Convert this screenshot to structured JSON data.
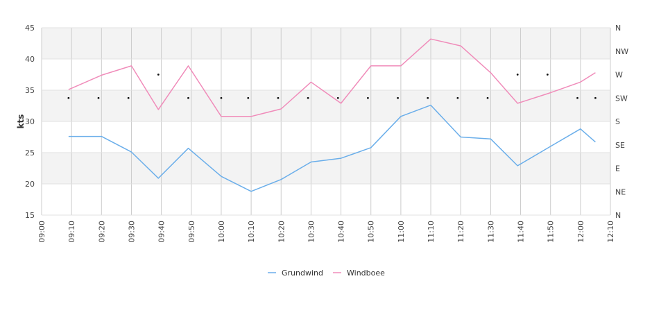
{
  "chart_data": {
    "type": "line",
    "ylabel": "kts",
    "ylim": [
      15,
      45
    ],
    "yticks": [
      "15",
      "20",
      "25",
      "30",
      "35",
      "40",
      "45"
    ],
    "xticks": [
      "09:00",
      "09:10",
      "09:20",
      "09:30",
      "09:40",
      "09:50",
      "10:00",
      "10:10",
      "10:20",
      "10:30",
      "10:40",
      "10:50",
      "11:00",
      "11:10",
      "11:20",
      "11:30",
      "11:40",
      "11:50",
      "12:00",
      "12:10"
    ],
    "x_range_minutes": [
      0,
      190
    ],
    "right_axis_labels": [
      "N",
      "NW",
      "W",
      "SW",
      "S",
      "SE",
      "E",
      "NE",
      "N"
    ],
    "series": [
      {
        "name": "Grundwind",
        "color": "#6aaeea",
        "x": [
          "09:09",
          "09:20",
          "09:30",
          "09:39",
          "09:49",
          "10:00",
          "10:10",
          "10:20",
          "10:30",
          "10:40",
          "10:50",
          "11:00",
          "11:10",
          "11:20",
          "11:30",
          "11:39",
          "11:50",
          "12:00",
          "12:05"
        ],
        "values": [
          27.6,
          27.6,
          25.1,
          20.9,
          25.7,
          21.2,
          18.8,
          20.7,
          23.5,
          24.1,
          25.8,
          30.8,
          32.6,
          27.5,
          27.2,
          22.9,
          26.0,
          28.8,
          26.7
        ]
      },
      {
        "name": "Windboee",
        "color": "#f08cba",
        "x": [
          "09:09",
          "09:20",
          "09:30",
          "09:39",
          "09:49",
          "10:00",
          "10:10",
          "10:20",
          "10:30",
          "10:40",
          "10:50",
          "11:00",
          "11:10",
          "11:20",
          "11:30",
          "11:39",
          "11:50",
          "12:00",
          "12:05"
        ],
        "values": [
          35.1,
          37.4,
          38.9,
          31.9,
          38.9,
          30.8,
          30.8,
          32.0,
          36.3,
          32.9,
          38.9,
          38.9,
          43.2,
          42.1,
          37.8,
          32.9,
          34.6,
          36.3,
          37.8
        ]
      }
    ],
    "direction_series": {
      "x": [
        "09:09",
        "09:19",
        "09:29",
        "09:39",
        "09:49",
        "10:00",
        "10:09",
        "10:19",
        "10:29",
        "10:39",
        "10:49",
        "10:59",
        "11:09",
        "11:19",
        "11:29",
        "11:39",
        "11:49",
        "11:59",
        "12:05"
      ],
      "values": [
        "SW",
        "SW",
        "SW",
        "W",
        "SW",
        "SW",
        "SW",
        "SW",
        "SW",
        "SW",
        "SW",
        "SW",
        "SW",
        "SW",
        "SW",
        "W",
        "W",
        "SW",
        "SW"
      ]
    },
    "grid": true,
    "legend": "bottom-center"
  }
}
